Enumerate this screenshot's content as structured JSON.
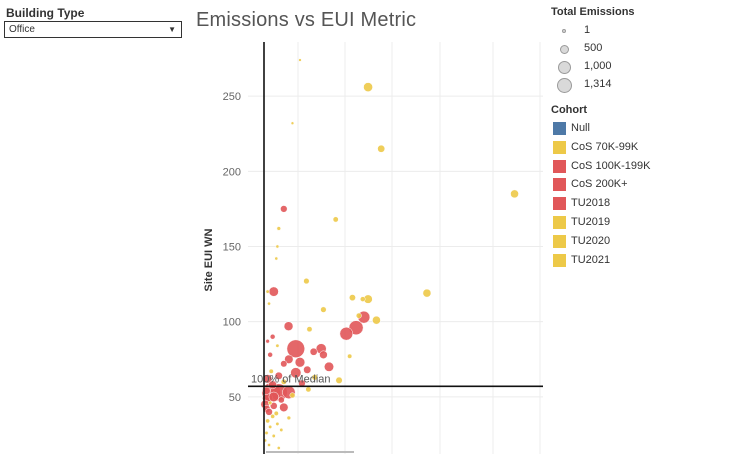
{
  "filter": {
    "title": "Building Type",
    "value": "Office"
  },
  "chart_title": "Emissions vs EUI Metric",
  "size_legend": {
    "title": "Total Emissions",
    "items": [
      "1",
      "500",
      "1,000",
      "1,314"
    ]
  },
  "cohort_legend": {
    "title": "Cohort",
    "items": [
      {
        "label": "Null",
        "color": "#4e79a7"
      },
      {
        "label": "CoS 70K-99K",
        "color": "#edc948"
      },
      {
        "label": "CoS 100K-199K",
        "color": "#e15759"
      },
      {
        "label": "CoS 200K+",
        "color": "#e15759"
      },
      {
        "label": "TU2018",
        "color": "#e15759"
      },
      {
        "label": "TU2019",
        "color": "#edc948"
      },
      {
        "label": "TU2020",
        "color": "#edc948"
      },
      {
        "label": "TU2021",
        "color": "#edc948"
      }
    ]
  },
  "chart_data": {
    "type": "scatter",
    "title": "Emissions vs EUI Metric",
    "xlabel": "",
    "ylabel": "Site EUI WN",
    "ylim": [
      12,
      286
    ],
    "xlim": [
      0,
      10
    ],
    "y_ticks": [
      50,
      100,
      150,
      200,
      250
    ],
    "grid": true,
    "reference_line": {
      "label": "100% of Median",
      "y": 57
    },
    "points": [
      {
        "x": 1.29,
        "y": 274,
        "c": "#edc948",
        "s": 1
      },
      {
        "x": 3.73,
        "y": 256,
        "c": "#edc948",
        "s": 210
      },
      {
        "x": 1.02,
        "y": 232,
        "c": "#edc948",
        "s": 1
      },
      {
        "x": 4.2,
        "y": 215,
        "c": "#edc948",
        "s": 110
      },
      {
        "x": 8.98,
        "y": 185,
        "c": "#edc948",
        "s": 150
      },
      {
        "x": 0.71,
        "y": 175,
        "c": "#e15759",
        "s": 90
      },
      {
        "x": 2.57,
        "y": 168,
        "c": "#edc948",
        "s": 40
      },
      {
        "x": 0.53,
        "y": 162,
        "c": "#edc948",
        "s": 10
      },
      {
        "x": 0.48,
        "y": 150,
        "c": "#edc948",
        "s": 3
      },
      {
        "x": 0.44,
        "y": 142,
        "c": "#edc948",
        "s": 3
      },
      {
        "x": 1.52,
        "y": 127,
        "c": "#edc948",
        "s": 50
      },
      {
        "x": 0.35,
        "y": 120,
        "c": "#e15759",
        "s": 230
      },
      {
        "x": 0.13,
        "y": 120,
        "c": "#edc948",
        "s": 5
      },
      {
        "x": 5.84,
        "y": 119,
        "c": "#edc948",
        "s": 150
      },
      {
        "x": 3.17,
        "y": 116,
        "c": "#edc948",
        "s": 70
      },
      {
        "x": 3.54,
        "y": 115,
        "c": "#edc948",
        "s": 30
      },
      {
        "x": 3.73,
        "y": 115,
        "c": "#edc948",
        "s": 180
      },
      {
        "x": 0.18,
        "y": 112,
        "c": "#edc948",
        "s": 3
      },
      {
        "x": 2.13,
        "y": 108,
        "c": "#edc948",
        "s": 50
      },
      {
        "x": 3.4,
        "y": 104,
        "c": "#edc948",
        "s": 40
      },
      {
        "x": 3.58,
        "y": 103,
        "c": "#e15759",
        "s": 430
      },
      {
        "x": 4.03,
        "y": 101,
        "c": "#edc948",
        "s": 150
      },
      {
        "x": 0.88,
        "y": 97,
        "c": "#e15759",
        "s": 200
      },
      {
        "x": 3.3,
        "y": 96,
        "c": "#e15759",
        "s": 650
      },
      {
        "x": 1.63,
        "y": 95,
        "c": "#edc948",
        "s": 40
      },
      {
        "x": 2.95,
        "y": 92,
        "c": "#e15759",
        "s": 520
      },
      {
        "x": 0.31,
        "y": 90,
        "c": "#e15759",
        "s": 30
      },
      {
        "x": 0.13,
        "y": 87,
        "c": "#e15759",
        "s": 10
      },
      {
        "x": 0.48,
        "y": 84,
        "c": "#edc948",
        "s": 5
      },
      {
        "x": 1.14,
        "y": 82,
        "c": "#e15759",
        "s": 1100
      },
      {
        "x": 2.05,
        "y": 82,
        "c": "#e15759",
        "s": 280
      },
      {
        "x": 1.78,
        "y": 80,
        "c": "#e15759",
        "s": 110
      },
      {
        "x": 2.13,
        "y": 78,
        "c": "#e15759",
        "s": 140
      },
      {
        "x": 0.22,
        "y": 78,
        "c": "#e15759",
        "s": 30
      },
      {
        "x": 3.07,
        "y": 77,
        "c": "#edc948",
        "s": 20
      },
      {
        "x": 0.89,
        "y": 75,
        "c": "#e15759",
        "s": 180
      },
      {
        "x": 1.29,
        "y": 73,
        "c": "#e15759",
        "s": 250
      },
      {
        "x": 0.71,
        "y": 72,
        "c": "#e15759",
        "s": 80
      },
      {
        "x": 2.33,
        "y": 70,
        "c": "#e15759",
        "s": 230
      },
      {
        "x": 1.55,
        "y": 68,
        "c": "#e15759",
        "s": 120
      },
      {
        "x": 0.26,
        "y": 67,
        "c": "#edc948",
        "s": 20
      },
      {
        "x": 1.14,
        "y": 66,
        "c": "#e15759",
        "s": 300
      },
      {
        "x": 0.53,
        "y": 64,
        "c": "#e15759",
        "s": 120
      },
      {
        "x": 1.82,
        "y": 63,
        "c": "#edc948",
        "s": 50
      },
      {
        "x": 0.13,
        "y": 62,
        "c": "#e15759",
        "s": 180
      },
      {
        "x": 2.69,
        "y": 61,
        "c": "#edc948",
        "s": 80
      },
      {
        "x": 0.71,
        "y": 60,
        "c": "#edc948",
        "s": 40
      },
      {
        "x": 1.36,
        "y": 59,
        "c": "#e15759",
        "s": 90
      },
      {
        "x": 0.31,
        "y": 58,
        "c": "#e15759",
        "s": 150
      },
      {
        "x": 1.59,
        "y": 55,
        "c": "#edc948",
        "s": 40
      },
      {
        "x": 0.09,
        "y": 54,
        "c": "#e15759",
        "s": 120
      },
      {
        "x": 0.26,
        "y": 53,
        "c": "#e15759",
        "s": 1250
      },
      {
        "x": 0.53,
        "y": 53,
        "c": "#e15759",
        "s": 1000
      },
      {
        "x": 0.89,
        "y": 53,
        "c": "#e15759",
        "s": 500
      },
      {
        "x": 1.02,
        "y": 51,
        "c": "#edc948",
        "s": 40
      },
      {
        "x": 0.35,
        "y": 50,
        "c": "#e15759",
        "s": 250
      },
      {
        "x": 0.13,
        "y": 49,
        "c": "#e15759",
        "s": 300
      },
      {
        "x": 0.62,
        "y": 48,
        "c": "#e15759",
        "s": 70
      },
      {
        "x": 0.22,
        "y": 46,
        "c": "#edc948",
        "s": 10
      },
      {
        "x": 0.04,
        "y": 45,
        "c": "#e15759",
        "s": 180
      },
      {
        "x": 0.35,
        "y": 44,
        "c": "#e15759",
        "s": 100
      },
      {
        "x": 0.71,
        "y": 43,
        "c": "#e15759",
        "s": 180
      },
      {
        "x": 0.09,
        "y": 42,
        "c": "#e15759",
        "s": 120
      },
      {
        "x": 0.18,
        "y": 40,
        "c": "#e15759",
        "s": 100
      },
      {
        "x": 0.44,
        "y": 39,
        "c": "#edc948",
        "s": 20
      },
      {
        "x": 0.31,
        "y": 37,
        "c": "#edc948",
        "s": 15
      },
      {
        "x": 0.89,
        "y": 36,
        "c": "#edc948",
        "s": 10
      },
      {
        "x": 0.13,
        "y": 34,
        "c": "#edc948",
        "s": 15
      },
      {
        "x": 0.48,
        "y": 32,
        "c": "#edc948",
        "s": 5
      },
      {
        "x": 0.22,
        "y": 30,
        "c": "#edc948",
        "s": 5
      },
      {
        "x": 0.62,
        "y": 28,
        "c": "#edc948",
        "s": 5
      },
      {
        "x": 0.09,
        "y": 26,
        "c": "#edc948",
        "s": 5
      },
      {
        "x": 0.35,
        "y": 24,
        "c": "#edc948",
        "s": 5
      },
      {
        "x": 0.04,
        "y": 21,
        "c": "#edc948",
        "s": 3
      },
      {
        "x": 0.18,
        "y": 18,
        "c": "#edc948",
        "s": 3
      },
      {
        "x": 0.53,
        "y": 16,
        "c": "#edc948",
        "s": 3
      }
    ]
  }
}
